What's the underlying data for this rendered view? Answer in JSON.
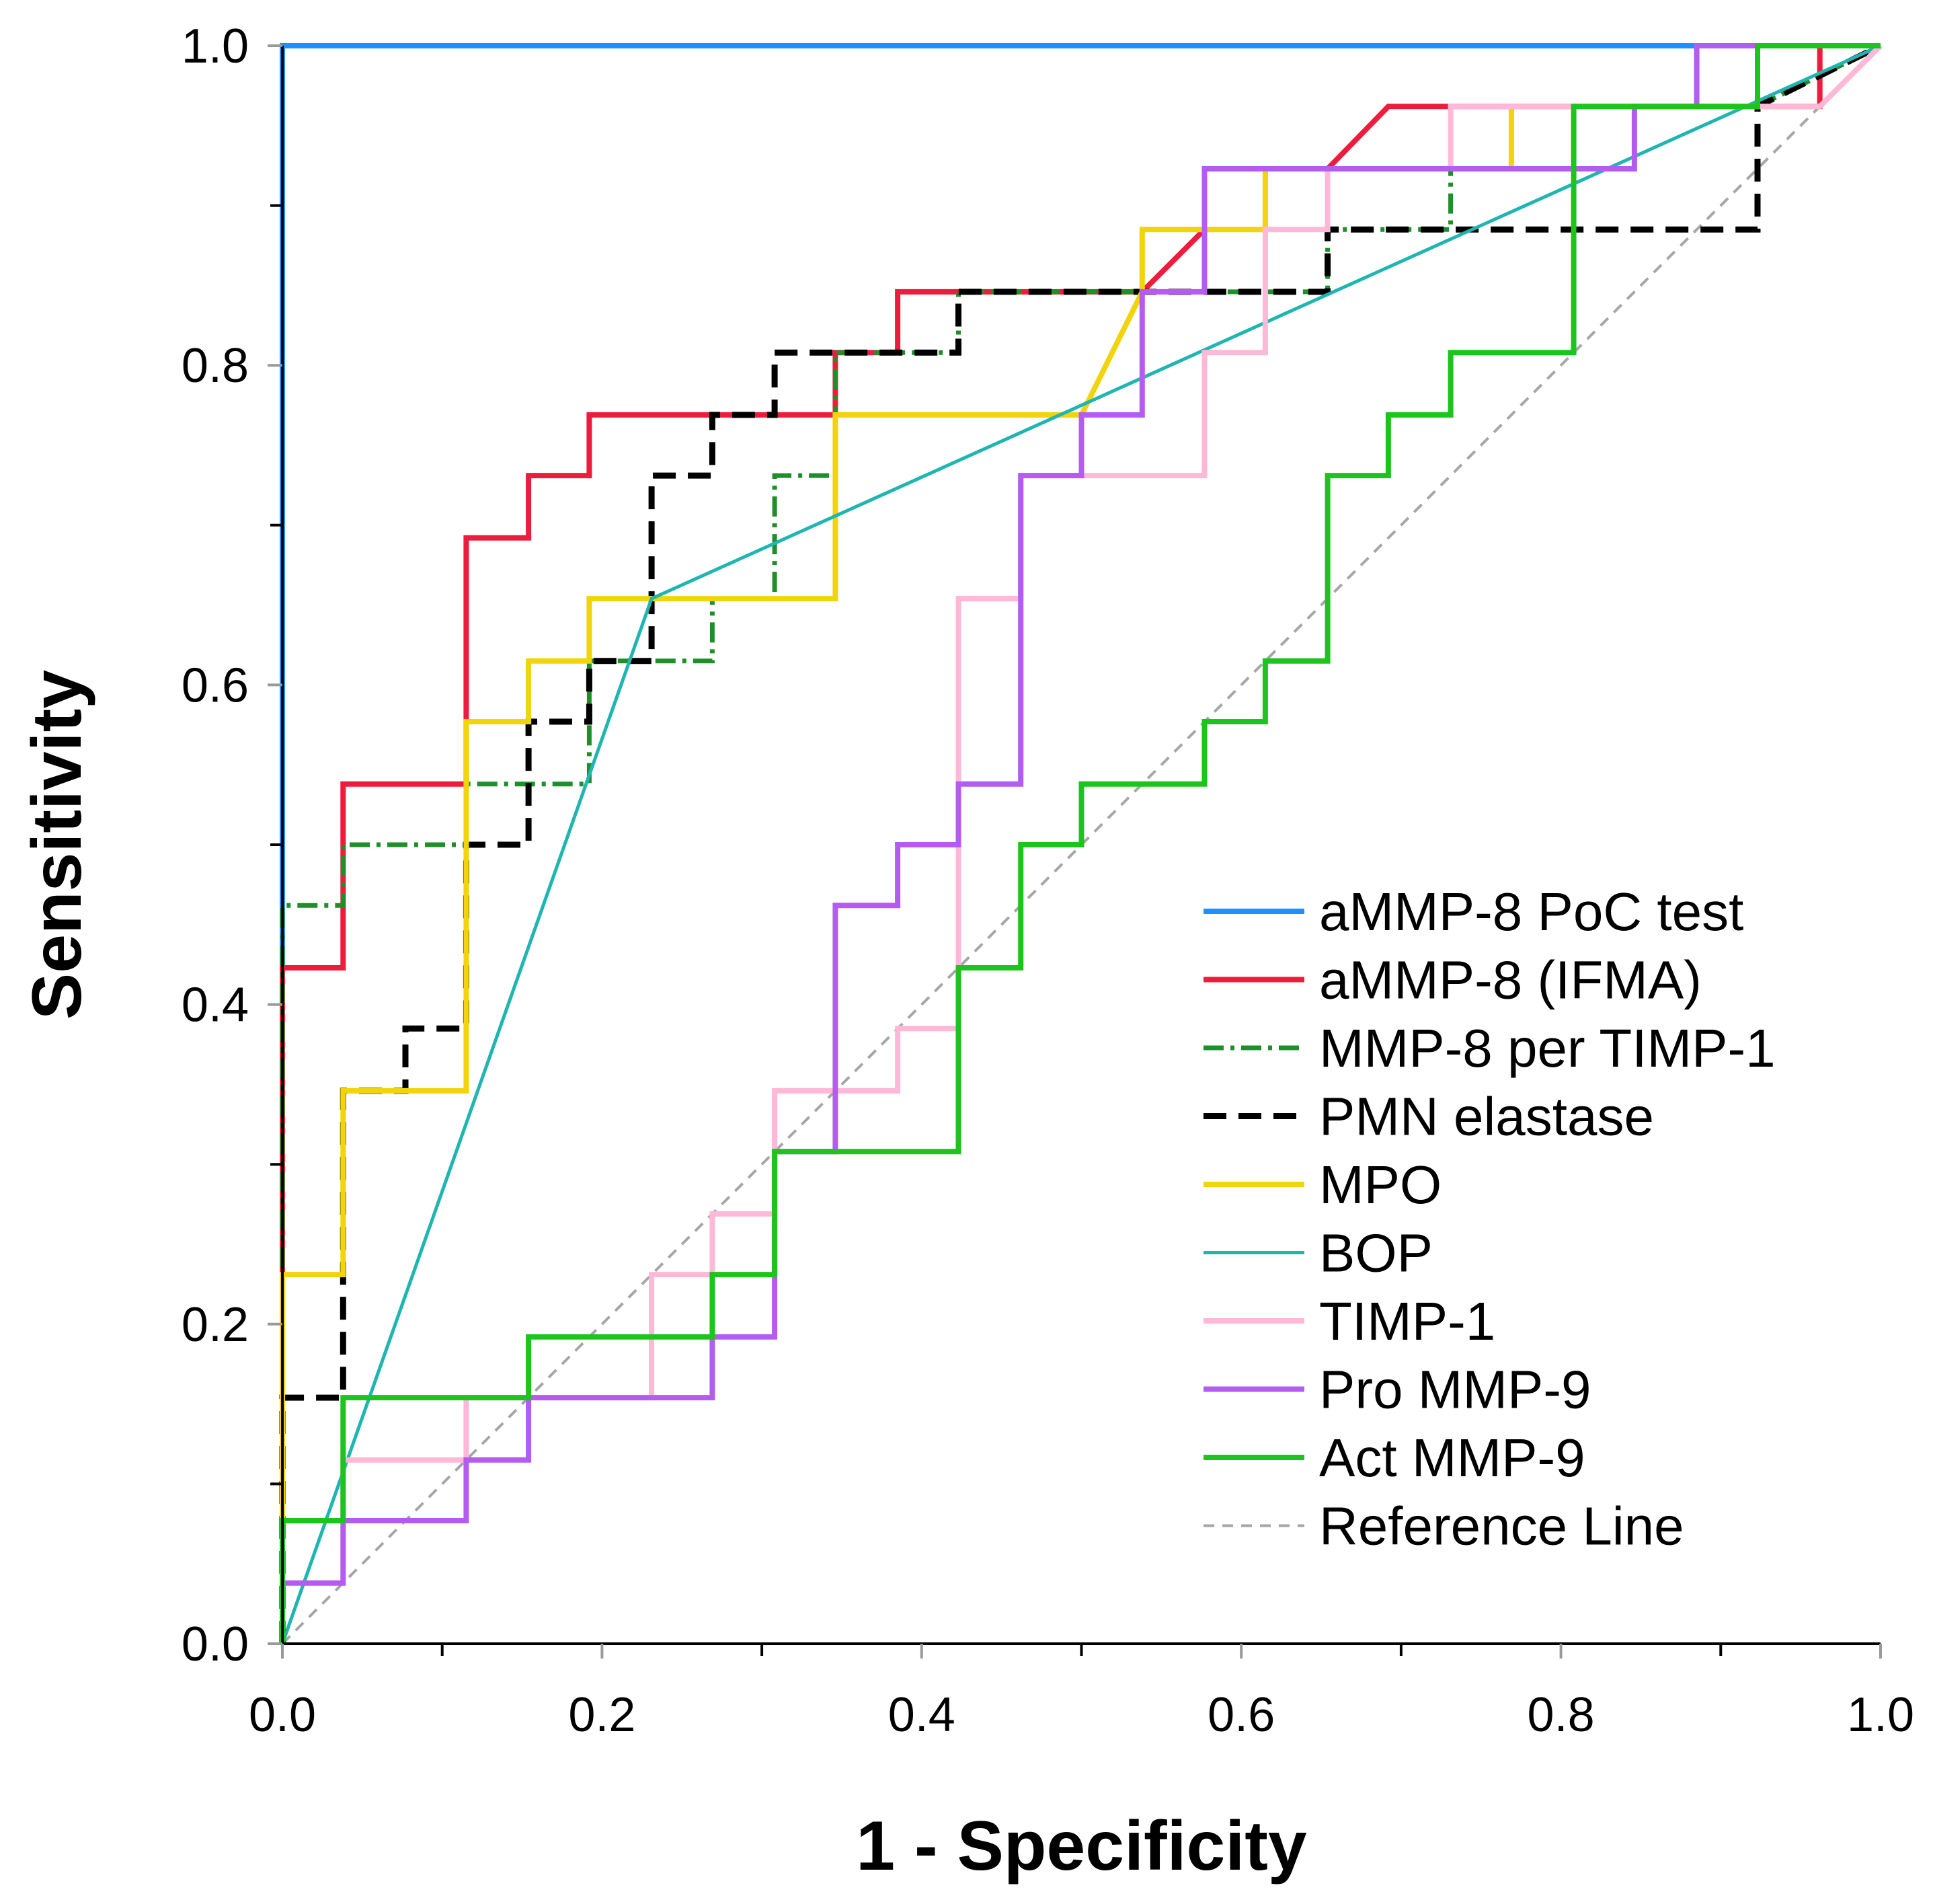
{
  "chart_data": {
    "type": "line",
    "title": "",
    "xlabel": "1 - Specificity",
    "ylabel": "Sensitivity",
    "xlim": [
      0,
      1
    ],
    "ylim": [
      0,
      1
    ],
    "xticks": [
      0.0,
      0.2,
      0.4,
      0.6,
      0.8,
      1.0
    ],
    "yticks": [
      0.0,
      0.2,
      0.4,
      0.6,
      0.8,
      1.0
    ],
    "xtick_labels": [
      "0.0",
      "0.2",
      "0.4",
      "0.6",
      "0.8",
      "1.0"
    ],
    "ytick_labels": [
      "0.0",
      "0.2",
      "0.4",
      "0.6",
      "0.8",
      "1.0"
    ],
    "grid": false,
    "legend_position": "bottom-right",
    "series": [
      {
        "name": "aMMP-8 PoC test",
        "color": "#1e90ff",
        "dash": "solid",
        "points": [
          [
            0,
            0
          ],
          [
            0,
            1
          ],
          [
            1,
            1
          ]
        ]
      },
      {
        "name": "aMMP-8 (IFMA)",
        "color": "#ee1c3c",
        "dash": "solid",
        "points": [
          [
            0,
            0
          ],
          [
            0,
            0.423
          ],
          [
            0.038,
            0.423
          ],
          [
            0.038,
            0.538
          ],
          [
            0.115,
            0.538
          ],
          [
            0.115,
            0.692
          ],
          [
            0.154,
            0.692
          ],
          [
            0.154,
            0.731
          ],
          [
            0.192,
            0.731
          ],
          [
            0.192,
            0.769
          ],
          [
            0.346,
            0.769
          ],
          [
            0.346,
            0.808
          ],
          [
            0.385,
            0.808
          ],
          [
            0.385,
            0.846
          ],
          [
            0.538,
            0.846
          ],
          [
            0.577,
            0.885
          ],
          [
            0.577,
            0.923
          ],
          [
            0.654,
            0.923
          ],
          [
            0.692,
            0.962
          ],
          [
            0.962,
            0.962
          ],
          [
            0.962,
            1.0
          ],
          [
            1,
            1
          ]
        ]
      },
      {
        "name": "MMP-8 per TIMP-1",
        "color": "#1e8f2a",
        "dash": "dashdot",
        "points": [
          [
            0,
            0
          ],
          [
            0,
            0.462
          ],
          [
            0.038,
            0.462
          ],
          [
            0.038,
            0.5
          ],
          [
            0.115,
            0.5
          ],
          [
            0.115,
            0.538
          ],
          [
            0.192,
            0.538
          ],
          [
            0.192,
            0.615
          ],
          [
            0.269,
            0.615
          ],
          [
            0.269,
            0.654
          ],
          [
            0.308,
            0.654
          ],
          [
            0.308,
            0.731
          ],
          [
            0.346,
            0.731
          ],
          [
            0.346,
            0.808
          ],
          [
            0.423,
            0.808
          ],
          [
            0.423,
            0.846
          ],
          [
            0.654,
            0.846
          ],
          [
            0.654,
            0.885
          ],
          [
            0.731,
            0.885
          ],
          [
            0.731,
            0.923
          ],
          [
            0.846,
            0.923
          ],
          [
            0.846,
            0.962
          ],
          [
            0.923,
            0.962
          ],
          [
            1,
            1
          ]
        ]
      },
      {
        "name": "PMN elastase",
        "color": "#000000",
        "dash": "dashed",
        "points": [
          [
            0,
            0
          ],
          [
            0,
            0.154
          ],
          [
            0.038,
            0.154
          ],
          [
            0.038,
            0.346
          ],
          [
            0.077,
            0.346
          ],
          [
            0.077,
            0.385
          ],
          [
            0.115,
            0.385
          ],
          [
            0.115,
            0.5
          ],
          [
            0.154,
            0.5
          ],
          [
            0.154,
            0.577
          ],
          [
            0.192,
            0.577
          ],
          [
            0.192,
            0.615
          ],
          [
            0.231,
            0.615
          ],
          [
            0.231,
            0.731
          ],
          [
            0.269,
            0.731
          ],
          [
            0.269,
            0.769
          ],
          [
            0.308,
            0.769
          ],
          [
            0.308,
            0.808
          ],
          [
            0.423,
            0.808
          ],
          [
            0.423,
            0.846
          ],
          [
            0.654,
            0.846
          ],
          [
            0.654,
            0.885
          ],
          [
            0.923,
            0.885
          ],
          [
            0.923,
            0.962
          ],
          [
            1,
            1
          ]
        ]
      },
      {
        "name": "MPO",
        "color": "#f2d40c",
        "dash": "solid",
        "points": [
          [
            0,
            0
          ],
          [
            0,
            0.231
          ],
          [
            0.038,
            0.231
          ],
          [
            0.038,
            0.346
          ],
          [
            0.115,
            0.346
          ],
          [
            0.115,
            0.577
          ],
          [
            0.154,
            0.577
          ],
          [
            0.154,
            0.615
          ],
          [
            0.192,
            0.615
          ],
          [
            0.192,
            0.654
          ],
          [
            0.346,
            0.654
          ],
          [
            0.346,
            0.769
          ],
          [
            0.5,
            0.769
          ],
          [
            0.538,
            0.846
          ],
          [
            0.538,
            0.885
          ],
          [
            0.615,
            0.885
          ],
          [
            0.615,
            0.923
          ],
          [
            0.769,
            0.923
          ],
          [
            0.769,
            0.962
          ],
          [
            0.962,
            0.962
          ],
          [
            1,
            1
          ]
        ]
      },
      {
        "name": "BOP",
        "color": "#1fb5b0",
        "dash": "thin",
        "points": [
          [
            0,
            0
          ],
          [
            0.231,
            0.654
          ],
          [
            1,
            1
          ]
        ]
      },
      {
        "name": "TIMP-1",
        "color": "#ffb8d8",
        "dash": "solid",
        "points": [
          [
            0,
            0
          ],
          [
            0,
            0.077
          ],
          [
            0.038,
            0.077
          ],
          [
            0.038,
            0.115
          ],
          [
            0.115,
            0.115
          ],
          [
            0.115,
            0.154
          ],
          [
            0.231,
            0.154
          ],
          [
            0.231,
            0.231
          ],
          [
            0.269,
            0.231
          ],
          [
            0.269,
            0.269
          ],
          [
            0.308,
            0.269
          ],
          [
            0.308,
            0.346
          ],
          [
            0.385,
            0.346
          ],
          [
            0.385,
            0.385
          ],
          [
            0.423,
            0.385
          ],
          [
            0.423,
            0.654
          ],
          [
            0.462,
            0.654
          ],
          [
            0.462,
            0.731
          ],
          [
            0.577,
            0.731
          ],
          [
            0.577,
            0.808
          ],
          [
            0.615,
            0.808
          ],
          [
            0.615,
            0.885
          ],
          [
            0.654,
            0.885
          ],
          [
            0.654,
            0.923
          ],
          [
            0.731,
            0.923
          ],
          [
            0.731,
            0.962
          ],
          [
            0.962,
            0.962
          ],
          [
            1,
            1
          ]
        ]
      },
      {
        "name": "Pro MMP-9",
        "color": "#b45cf0",
        "dash": "solid",
        "points": [
          [
            0,
            0
          ],
          [
            0,
            0.038
          ],
          [
            0.038,
            0.038
          ],
          [
            0.038,
            0.077
          ],
          [
            0.115,
            0.077
          ],
          [
            0.115,
            0.115
          ],
          [
            0.154,
            0.115
          ],
          [
            0.154,
            0.154
          ],
          [
            0.269,
            0.154
          ],
          [
            0.269,
            0.192
          ],
          [
            0.308,
            0.192
          ],
          [
            0.308,
            0.308
          ],
          [
            0.346,
            0.308
          ],
          [
            0.346,
            0.462
          ],
          [
            0.385,
            0.462
          ],
          [
            0.385,
            0.5
          ],
          [
            0.423,
            0.5
          ],
          [
            0.423,
            0.538
          ],
          [
            0.462,
            0.538
          ],
          [
            0.462,
            0.731
          ],
          [
            0.5,
            0.731
          ],
          [
            0.5,
            0.769
          ],
          [
            0.538,
            0.769
          ],
          [
            0.538,
            0.846
          ],
          [
            0.577,
            0.846
          ],
          [
            0.577,
            0.923
          ],
          [
            0.846,
            0.923
          ],
          [
            0.846,
            0.962
          ],
          [
            0.885,
            0.962
          ],
          [
            0.885,
            1.0
          ],
          [
            1,
            1
          ]
        ]
      },
      {
        "name": "Act MMP-9",
        "color": "#1ec41e",
        "dash": "solid",
        "points": [
          [
            0,
            0
          ],
          [
            0,
            0.077
          ],
          [
            0.038,
            0.077
          ],
          [
            0.038,
            0.154
          ],
          [
            0.154,
            0.154
          ],
          [
            0.154,
            0.192
          ],
          [
            0.269,
            0.192
          ],
          [
            0.269,
            0.231
          ],
          [
            0.308,
            0.231
          ],
          [
            0.308,
            0.308
          ],
          [
            0.423,
            0.308
          ],
          [
            0.423,
            0.423
          ],
          [
            0.462,
            0.423
          ],
          [
            0.462,
            0.5
          ],
          [
            0.5,
            0.5
          ],
          [
            0.5,
            0.538
          ],
          [
            0.577,
            0.538
          ],
          [
            0.577,
            0.577
          ],
          [
            0.615,
            0.577
          ],
          [
            0.615,
            0.615
          ],
          [
            0.654,
            0.615
          ],
          [
            0.654,
            0.731
          ],
          [
            0.692,
            0.731
          ],
          [
            0.692,
            0.769
          ],
          [
            0.731,
            0.769
          ],
          [
            0.731,
            0.808
          ],
          [
            0.808,
            0.808
          ],
          [
            0.808,
            0.962
          ],
          [
            0.923,
            0.962
          ],
          [
            0.923,
            1.0
          ],
          [
            1,
            1
          ]
        ]
      },
      {
        "name": "Reference Line",
        "color": "#a6a6a6",
        "dash": "reference",
        "points": [
          [
            0,
            0
          ],
          [
            1,
            1
          ]
        ]
      }
    ]
  }
}
